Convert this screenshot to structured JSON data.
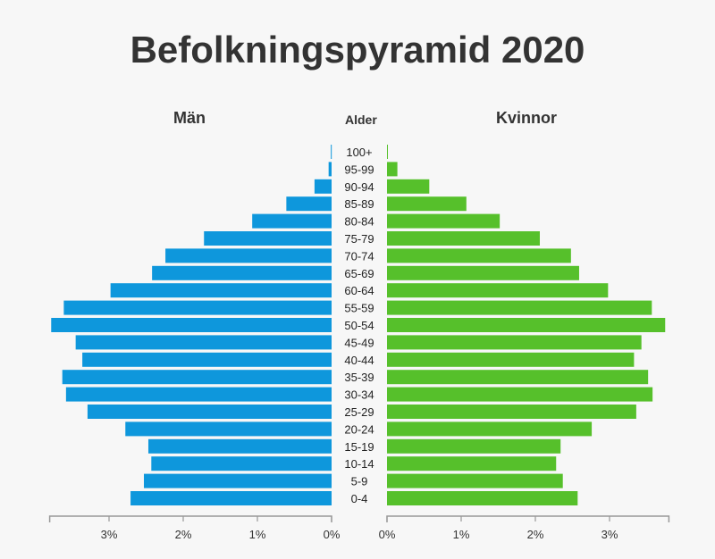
{
  "chart_data": {
    "type": "bar",
    "title": "Befolkningspyramid 2020",
    "left_label": "Män",
    "right_label": "Kvinnor",
    "center_label": "Alder",
    "categories": [
      "100+",
      "95-99",
      "90-94",
      "85-89",
      "80-84",
      "75-79",
      "70-74",
      "65-69",
      "60-64",
      "55-59",
      "50-54",
      "45-49",
      "40-44",
      "35-39",
      "30-34",
      "25-29",
      "20-24",
      "15-19",
      "10-14",
      "5-9",
      "0-4"
    ],
    "series": [
      {
        "name": "Män",
        "color": "#0e97dc",
        "values": [
          0.01,
          0.04,
          0.23,
          0.61,
          1.07,
          1.72,
          2.24,
          2.42,
          2.98,
          3.61,
          3.78,
          3.45,
          3.36,
          3.63,
          3.58,
          3.29,
          2.78,
          2.47,
          2.43,
          2.53,
          2.71
        ]
      },
      {
        "name": "Kvinnor",
        "color": "#56c02b",
        "values": [
          0.01,
          0.14,
          0.57,
          1.07,
          1.52,
          2.06,
          2.48,
          2.59,
          2.98,
          3.57,
          3.75,
          3.43,
          3.33,
          3.52,
          3.58,
          3.36,
          2.76,
          2.34,
          2.28,
          2.37,
          2.57
        ]
      }
    ],
    "xlim": [
      0,
      3.8
    ],
    "ticks": [
      0,
      1,
      2,
      3
    ],
    "tick_labels": [
      "0%",
      "1%",
      "2%",
      "3%"
    ],
    "grid": false
  }
}
